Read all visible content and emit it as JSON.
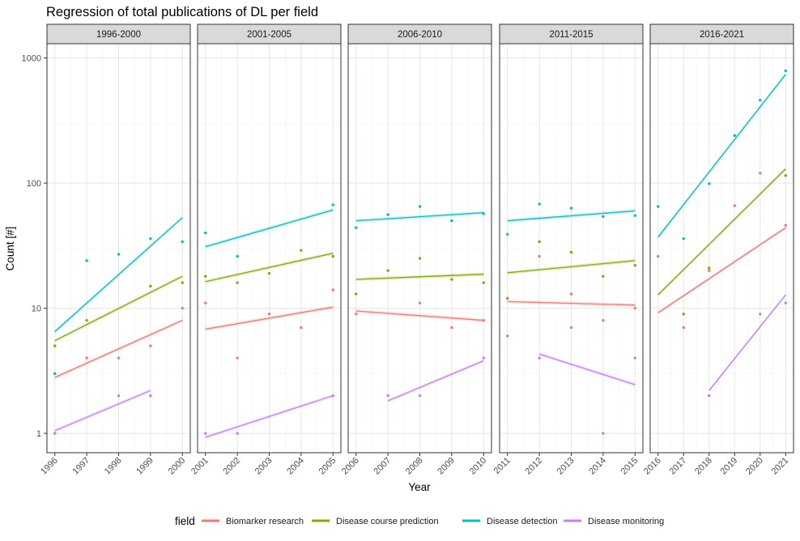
{
  "chart_data": {
    "type": "scatter",
    "title": "Regression of total publications of DL per field",
    "xlabel": "Year",
    "ylabel": "Count [#]",
    "y_scale": "log10",
    "ylim": [
      0.7,
      1300
    ],
    "y_ticks": [
      1,
      10,
      100,
      1000
    ],
    "y_tick_labels": [
      "1",
      "10",
      "100",
      "1000"
    ],
    "legend_title": "field",
    "legend_position": "bottom",
    "grid": true,
    "colors": {
      "Biomarker research": "#F8766D",
      "Disease course prediction": "#7CAE00",
      "Disease detection": "#00BFC4",
      "Disease monitoring": "#C77CFF"
    },
    "series_names": [
      "Biomarker research",
      "Disease course prediction",
      "Disease detection",
      "Disease monitoring"
    ],
    "facets": [
      {
        "label": "1996-2000",
        "x": [
          1996,
          1997,
          1998,
          1999,
          2000
        ],
        "points": {
          "Biomarker research": [
            [
              1996,
              3
            ],
            [
              1997,
              4
            ],
            [
              1998,
              4
            ],
            [
              1999,
              5
            ],
            [
              2000,
              10
            ]
          ],
          "Disease course prediction": [
            [
              1996,
              5
            ],
            [
              1997,
              8
            ],
            [
              1999,
              15
            ],
            [
              2000,
              16
            ]
          ],
          "Disease detection": [
            [
              1996,
              3
            ],
            [
              1997,
              24
            ],
            [
              1998,
              27
            ],
            [
              1999,
              36
            ],
            [
              2000,
              34
            ]
          ],
          "Disease monitoring": [
            [
              1996,
              1
            ],
            [
              1998,
              2
            ],
            [
              1999,
              2
            ]
          ]
        },
        "fits": {
          "Biomarker research": [
            [
              1996,
              2.8
            ],
            [
              2000,
              8.0
            ]
          ],
          "Disease course prediction": [
            [
              1996,
              5.5
            ],
            [
              2000,
              18
            ]
          ],
          "Disease detection": [
            [
              1996,
              6.5
            ],
            [
              2000,
              53
            ]
          ],
          "Disease monitoring": [
            [
              1996,
              1.05
            ],
            [
              1999,
              2.2
            ]
          ]
        }
      },
      {
        "label": "2001-2005",
        "x": [
          2001,
          2002,
          2003,
          2004,
          2005
        ],
        "points": {
          "Biomarker research": [
            [
              2001,
              11
            ],
            [
              2002,
              4
            ],
            [
              2003,
              9
            ],
            [
              2004,
              7
            ],
            [
              2005,
              14
            ]
          ],
          "Disease course prediction": [
            [
              2001,
              18
            ],
            [
              2002,
              16
            ],
            [
              2003,
              19
            ],
            [
              2004,
              29
            ],
            [
              2005,
              26
            ]
          ],
          "Disease detection": [
            [
              2001,
              40
            ],
            [
              2002,
              26
            ],
            [
              2005,
              67
            ]
          ],
          "Disease monitoring": [
            [
              2001,
              1
            ],
            [
              2002,
              1
            ],
            [
              2005,
              2
            ]
          ]
        },
        "fits": {
          "Biomarker research": [
            [
              2001,
              6.8
            ],
            [
              2005,
              10.2
            ]
          ],
          "Disease course prediction": [
            [
              2001,
              16.3
            ],
            [
              2005,
              27.5
            ]
          ],
          "Disease detection": [
            [
              2001,
              31
            ],
            [
              2005,
              61
            ]
          ],
          "Disease monitoring": [
            [
              2001,
              0.93
            ],
            [
              2005,
              2.0
            ]
          ]
        }
      },
      {
        "label": "2006-2010",
        "x": [
          2006,
          2007,
          2008,
          2009,
          2010
        ],
        "points": {
          "Biomarker research": [
            [
              2006,
              9
            ],
            [
              2008,
              11
            ],
            [
              2009,
              7
            ],
            [
              2010,
              8
            ]
          ],
          "Disease course prediction": [
            [
              2006,
              13
            ],
            [
              2007,
              20
            ],
            [
              2008,
              25
            ],
            [
              2009,
              17
            ],
            [
              2010,
              16
            ]
          ],
          "Disease detection": [
            [
              2006,
              44
            ],
            [
              2007,
              56
            ],
            [
              2008,
              65
            ],
            [
              2009,
              50
            ],
            [
              2010,
              57
            ]
          ],
          "Disease monitoring": [
            [
              2007,
              2
            ],
            [
              2008,
              2
            ],
            [
              2010,
              4
            ]
          ]
        },
        "fits": {
          "Biomarker research": [
            [
              2006,
              9.5
            ],
            [
              2010,
              8.0
            ]
          ],
          "Disease course prediction": [
            [
              2006,
              17
            ],
            [
              2010,
              18.7
            ]
          ],
          "Disease detection": [
            [
              2006,
              50
            ],
            [
              2010,
              58
            ]
          ],
          "Disease monitoring": [
            [
              2007,
              1.82
            ],
            [
              2010,
              3.8
            ]
          ]
        }
      },
      {
        "label": "2011-2015",
        "x": [
          2011,
          2012,
          2013,
          2014,
          2015
        ],
        "points": {
          "Biomarker research": [
            [
              2011,
              6
            ],
            [
              2012,
              26
            ],
            [
              2013,
              13
            ],
            [
              2014,
              8
            ],
            [
              2015,
              10
            ]
          ],
          "Disease course prediction": [
            [
              2011,
              12
            ],
            [
              2012,
              34
            ],
            [
              2013,
              28
            ],
            [
              2014,
              18
            ],
            [
              2015,
              22
            ]
          ],
          "Disease detection": [
            [
              2011,
              39
            ],
            [
              2012,
              68
            ],
            [
              2013,
              63
            ],
            [
              2014,
              54
            ],
            [
              2015,
              55
            ]
          ],
          "Disease monitoring": [
            [
              2012,
              4
            ],
            [
              2013,
              7
            ],
            [
              2014,
              1
            ],
            [
              2015,
              4
            ]
          ]
        },
        "fits": {
          "Biomarker research": [
            [
              2011,
              11.3
            ],
            [
              2015,
              10.6
            ]
          ],
          "Disease course prediction": [
            [
              2011,
              19.2
            ],
            [
              2015,
              24
            ]
          ],
          "Disease detection": [
            [
              2011,
              50
            ],
            [
              2015,
              60
            ]
          ],
          "Disease monitoring": [
            [
              2012,
              4.3
            ],
            [
              2015,
              2.45
            ]
          ]
        }
      },
      {
        "label": "2016-2021",
        "x": [
          2016,
          2017,
          2018,
          2019,
          2020,
          2021
        ],
        "points": {
          "Biomarker research": [
            [
              2016,
              26
            ],
            [
              2017,
              7
            ],
            [
              2018,
              20
            ],
            [
              2019,
              66
            ],
            [
              2020,
              120
            ],
            [
              2021,
              46
            ]
          ],
          "Disease course prediction": [
            [
              2017,
              9
            ],
            [
              2018,
              21
            ],
            [
              2021,
              115
            ]
          ],
          "Disease detection": [
            [
              2016,
              65
            ],
            [
              2017,
              36
            ],
            [
              2018,
              99
            ],
            [
              2019,
              240
            ],
            [
              2020,
              460
            ],
            [
              2021,
              790
            ]
          ],
          "Disease monitoring": [
            [
              2018,
              2
            ],
            [
              2020,
              9
            ],
            [
              2021,
              11
            ]
          ]
        },
        "fits": {
          "Biomarker research": [
            [
              2016,
              9.2
            ],
            [
              2021,
              44
            ]
          ],
          "Disease course prediction": [
            [
              2016,
              12.8
            ],
            [
              2021,
              130
            ]
          ],
          "Disease detection": [
            [
              2016,
              37
            ],
            [
              2021,
              740
            ]
          ],
          "Disease monitoring": [
            [
              2018,
              2.2
            ],
            [
              2021,
              12.8
            ]
          ]
        }
      }
    ]
  }
}
